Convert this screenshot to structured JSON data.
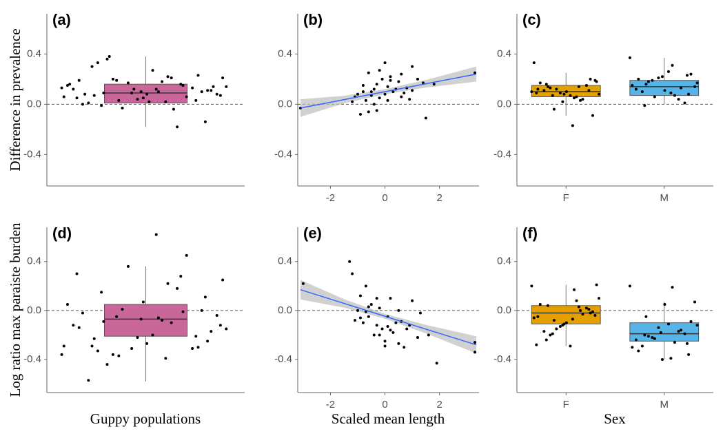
{
  "figure": {
    "y_labels": [
      "Difference in prevalence",
      "Log ratio max paraiste burden"
    ],
    "x_labels": [
      "Guppy populations",
      "Scaled mean length",
      "Sex"
    ]
  },
  "chart_data": [
    {
      "type": "box",
      "title": "(a)",
      "categories": [
        null
      ],
      "ylim": [
        -0.65,
        0.72
      ],
      "yticks": [
        -0.4,
        {
          "value": 0,
          "label": "0.0"
        },
        0.4
      ],
      "hline": 0,
      "boxes": [
        {
          "color": "#c9679a",
          "whisker_low": -0.18,
          "q1": 0.01,
          "median": 0.09,
          "q3": 0.16,
          "whisker_high": 0.38,
          "points": [
            0.13,
            0.02,
            -0.01,
            -0.14,
            0.1,
            0.05,
            0.16,
            0.19,
            0.07,
            0.12,
            0.3,
            0.03,
            0.09,
            0.15,
            0.21,
            0.36,
            0.11,
            0.08,
            0.0,
            0.06,
            -0.03,
            0.14,
            0.18,
            0.33,
            0.1,
            0.04,
            0.12,
            -0.18,
            0.2,
            0.08,
            0.27,
            0.01,
            0.13,
            0.17,
            0.06,
            0.22,
            0.09,
            0.11,
            0.05,
            0.19,
            0.15,
            0.03,
            0.21,
            0.1,
            0.07,
            0.23,
            0.12,
            0.16,
            -0.04,
            0.38,
            0.14,
            0.02,
            0.08
          ]
        }
      ]
    },
    {
      "type": "scatter",
      "title": "(b)",
      "xlim": [
        -3.2,
        3.45
      ],
      "xticks": [
        -2,
        0,
        2
      ],
      "ylim": [
        -0.65,
        0.72
      ],
      "yticks": [
        -0.4,
        {
          "value": 0,
          "label": "0.0"
        },
        0.4
      ],
      "hline": 0,
      "color": "#000000",
      "x": [
        -3.1,
        -1.2,
        -1.0,
        -0.9,
        -0.8,
        -0.7,
        -0.6,
        -0.5,
        -0.4,
        -0.3,
        -0.2,
        -0.1,
        0.0,
        0.1,
        0.2,
        0.3,
        0.5,
        0.6,
        0.8,
        1.0,
        1.2,
        1.5,
        1.8,
        3.3,
        -0.6,
        -0.2,
        0.0,
        0.4,
        0.9,
        1.4,
        -1.1,
        -0.4,
        0.2,
        0.7,
        -0.8,
        -0.3,
        0.1,
        0.6,
        1.0,
        -0.5
      ],
      "y": [
        -0.03,
        0.02,
        0.08,
        -0.08,
        0.15,
        0.03,
        0.25,
        0.1,
        0.12,
        -0.05,
        0.05,
        0.2,
        0.33,
        0.14,
        0.22,
        0.1,
        0.18,
        0.06,
        0.13,
        0.3,
        0.2,
        -0.11,
        0.16,
        0.25,
        -0.06,
        0.27,
        0.08,
        0.12,
        0.04,
        0.17,
        0.06,
        0.0,
        0.19,
        0.09,
        0.1,
        0.16,
        0.03,
        0.24,
        0.11,
        0.07
      ],
      "fit": {
        "color": "#3366ff",
        "band_color": "#bdbdbd",
        "x": [
          -3.1,
          -1.5,
          0,
          1.5,
          3.35
        ],
        "y": [
          -0.03,
          0.037,
          0.1,
          0.163,
          0.24
        ],
        "ci_low": [
          -0.1,
          0.007,
          0.08,
          0.133,
          0.18
        ],
        "ci_high": [
          0.04,
          0.067,
          0.12,
          0.193,
          0.3
        ]
      }
    },
    {
      "type": "box",
      "title": "(c)",
      "categories": [
        "F",
        "M"
      ],
      "ylim": [
        -0.65,
        0.72
      ],
      "yticks": [
        -0.4,
        {
          "value": 0,
          "label": "0.0"
        },
        0.4
      ],
      "hline": 0,
      "boxes": [
        {
          "color": "#e5a000",
          "whisker_low": -0.09,
          "q1": 0.06,
          "median": 0.1,
          "q3": 0.15,
          "whisker_high": 0.25,
          "points": [
            0.1,
            0.05,
            0.14,
            0.2,
            0.08,
            0.12,
            0.03,
            -0.04,
            0.18,
            0.07,
            0.11,
            0.15,
            0.09,
            0.33,
            0.06,
            0.13,
            -0.09,
            0.1,
            0.17,
            0.04,
            0.12,
            0.08,
            -0.17,
            0.16,
            0.11,
            0.02,
            0.09,
            0.14,
            0.07,
            0.19
          ]
        },
        {
          "color": "#56b4e9",
          "whisker_low": 0.0,
          "q1": 0.07,
          "median": 0.14,
          "q3": 0.19,
          "whisker_high": 0.37,
          "points": [
            0.37,
            0.31,
            0.16,
            0.08,
            0.22,
            0.12,
            0.04,
            0.19,
            0.14,
            0.26,
            0.1,
            0.01,
            0.21,
            0.15,
            0.07,
            0.18,
            0.24,
            0.11,
            0.2,
            0.13,
            0.06,
            0.17,
            0.09,
            -0.01,
            0.23
          ]
        }
      ]
    },
    {
      "type": "box",
      "title": "(d)",
      "categories": [
        null
      ],
      "ylim": [
        -0.67,
        0.68
      ],
      "yticks": [
        -0.4,
        {
          "value": 0,
          "label": "0.0"
        },
        0.4
      ],
      "hline": 0,
      "boxes": [
        {
          "color": "#c9679a",
          "whisker_low": -0.58,
          "q1": -0.21,
          "median": -0.07,
          "q3": 0.05,
          "whisker_high": 0.36,
          "points": [
            -0.36,
            -0.39,
            0.15,
            0.11,
            -0.07,
            0.3,
            0.28,
            -0.05,
            -0.12,
            0.62,
            -0.29,
            -0.21,
            -0.31,
            0.05,
            -0.1,
            -0.44,
            -0.17,
            -0.27,
            -0.02,
            0.45,
            0.01,
            -0.15,
            -0.08,
            -0.33,
            0.0,
            -0.22,
            -0.12,
            0.18,
            -0.36,
            -0.04,
            -0.2,
            -0.57,
            -0.31,
            0.36,
            -0.29,
            0.22,
            -0.09,
            -0.25,
            0.07,
            -0.14,
            -0.01,
            -0.37,
            0.25,
            -0.06,
            -0.23,
            -0.3
          ]
        }
      ]
    },
    {
      "type": "scatter",
      "title": "(e)",
      "xlim": [
        -3.2,
        3.45
      ],
      "xticks": [
        -2,
        0,
        2
      ],
      "ylim": [
        -0.67,
        0.68
      ],
      "yticks": [
        -0.4,
        {
          "value": 0,
          "label": "0.0"
        },
        0.4
      ],
      "hline": 0,
      "color": "#000000",
      "x": [
        -3.0,
        -1.3,
        -1.2,
        -1.0,
        -0.9,
        -0.8,
        -0.7,
        -0.6,
        -0.5,
        -0.4,
        -0.3,
        -0.2,
        -0.1,
        0.0,
        0.1,
        0.2,
        0.3,
        0.5,
        0.7,
        0.9,
        1.0,
        1.2,
        1.6,
        1.9,
        3.3,
        3.3,
        -1.1,
        -0.6,
        -0.3,
        0.0,
        0.4,
        0.8,
        1.3,
        -0.9,
        -0.2,
        0.2,
        0.6,
        -0.7,
        0.1,
        0.5
      ],
      "y": [
        0.22,
        0.4,
        0.3,
        0.0,
        0.12,
        -0.1,
        0.2,
        -0.05,
        0.05,
        -0.2,
        0.1,
        0.02,
        -0.15,
        -0.25,
        -0.05,
        0.1,
        -0.18,
        0.0,
        -0.3,
        -0.12,
        0.08,
        -0.22,
        -0.2,
        -0.43,
        -0.34,
        -0.26,
        -0.08,
        0.03,
        -0.12,
        -0.29,
        -0.1,
        -0.15,
        -0.02,
        -0.06,
        -0.2,
        -0.16,
        -0.09,
        -0.01,
        -0.13,
        -0.27
      ],
      "fit": {
        "color": "#3366ff",
        "band_color": "#bdbdbd",
        "x": [
          -3.1,
          -1.5,
          0,
          1.5,
          3.35
        ],
        "y": [
          0.17,
          0.058,
          -0.047,
          -0.152,
          -0.28
        ],
        "ci_low": [
          0.09,
          0.023,
          -0.067,
          -0.187,
          -0.35
        ],
        "ci_high": [
          0.25,
          0.093,
          -0.027,
          -0.117,
          -0.21
        ]
      }
    },
    {
      "type": "box",
      "title": "(f)",
      "categories": [
        "F",
        "M"
      ],
      "ylim": [
        -0.67,
        0.68
      ],
      "yticks": [
        -0.4,
        {
          "value": 0,
          "label": "0.0"
        },
        0.4
      ],
      "hline": 0,
      "boxes": [
        {
          "color": "#e5a000",
          "whisker_low": -0.29,
          "q1": -0.11,
          "median": -0.02,
          "q3": 0.04,
          "whisker_high": 0.21,
          "points": [
            0.2,
            0.17,
            0.04,
            -0.02,
            -0.11,
            -0.05,
            0.0,
            -0.08,
            0.21,
            -0.29,
            -0.17,
            0.02,
            -0.13,
            -0.06,
            0.08,
            -0.2,
            -0.01,
            -0.1,
            0.05,
            -0.03,
            -0.15,
            0.1,
            -0.07,
            -0.24,
            0.01,
            -0.12,
            -0.28,
            0.03,
            -0.19,
            -0.04
          ]
        },
        {
          "color": "#56b4e9",
          "whisker_low": -0.4,
          "q1": -0.25,
          "median": -0.19,
          "q3": -0.1,
          "whisker_high": 0.07,
          "points": [
            0.2,
            0.19,
            -0.05,
            -0.36,
            -0.4,
            -0.24,
            -0.17,
            -0.22,
            0.07,
            -0.11,
            -0.29,
            -0.19,
            -0.14,
            -0.3,
            -0.26,
            -0.21,
            -0.09,
            0.05,
            -0.33,
            -0.16,
            -0.23,
            -0.12,
            -0.39,
            -0.2,
            -0.27,
            -0.18
          ]
        }
      ]
    }
  ]
}
